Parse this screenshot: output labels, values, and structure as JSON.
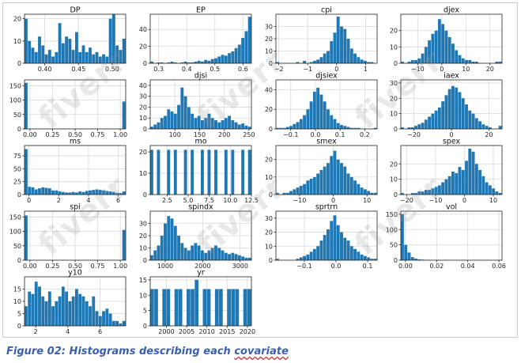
{
  "watermark": "fiverr",
  "caption": {
    "prefix": "Figure 02: Histograms describing each ",
    "underlined": "covariate"
  },
  "colors": {
    "bar": "#1f77b4",
    "grid": "#d9d9d9",
    "axis": "#222222",
    "caption": "#3b5fb0"
  },
  "chart_data": [
    {
      "type": "bar",
      "title": "DP",
      "xlim": [
        0.37,
        0.52
      ],
      "ylim": [
        0,
        22
      ],
      "xticks": [
        0.4,
        0.45,
        0.5
      ],
      "xtick_labels": [
        "0.40",
        "0.45",
        "0.50"
      ],
      "yticks": [
        0,
        10,
        20
      ],
      "ytick_labels": [
        "0",
        "10",
        "20"
      ],
      "counts": [
        20,
        10,
        7,
        5,
        12,
        8,
        4,
        6,
        3,
        5,
        18,
        9,
        12,
        11,
        6,
        14,
        5,
        8,
        5,
        7,
        4,
        5,
        3,
        4,
        3,
        20,
        22,
        8,
        6,
        11
      ]
    },
    {
      "type": "bar",
      "title": "EP",
      "xlim": [
        0.27,
        0.63
      ],
      "ylim": [
        0,
        58
      ],
      "xticks": [
        0.3,
        0.4,
        0.5,
        0.6
      ],
      "xtick_labels": [
        "0.3",
        "0.4",
        "0.5",
        "0.6"
      ],
      "yticks": [
        0,
        20,
        40
      ],
      "ytick_labels": [
        "0",
        "20",
        "40"
      ],
      "counts": [
        2,
        0,
        1,
        1,
        0,
        1,
        2,
        1,
        0,
        1,
        2,
        1,
        1,
        2,
        3,
        2,
        4,
        3,
        5,
        6,
        8,
        10,
        9,
        12,
        14,
        18,
        22,
        30,
        38,
        55
      ]
    },
    {
      "type": "bar",
      "title": "cpi",
      "xlim": [
        -2.1,
        1.4
      ],
      "ylim": [
        0,
        40
      ],
      "xticks": [
        -2,
        -1,
        0,
        1
      ],
      "xtick_labels": [
        "−2",
        "−1",
        "0",
        "1"
      ],
      "yticks": [
        0,
        10,
        20,
        30
      ],
      "ytick_labels": [
        "0",
        "10",
        "20",
        "30"
      ],
      "counts": [
        1,
        0,
        0,
        0,
        0,
        0,
        1,
        0,
        2,
        0,
        1,
        2,
        3,
        5,
        8,
        10,
        18,
        25,
        38,
        30,
        28,
        20,
        12,
        8,
        5,
        3,
        2,
        1,
        1,
        0
      ]
    },
    {
      "type": "bar",
      "title": "djex",
      "xlim": [
        -17,
        25
      ],
      "ylim": [
        0,
        30
      ],
      "xticks": [
        -10,
        0,
        10,
        20
      ],
      "xtick_labels": [
        "−10",
        "0",
        "10",
        "20"
      ],
      "yticks": [
        0,
        10,
        20
      ],
      "ytick_labels": [
        "0",
        "10",
        "20"
      ],
      "counts": [
        1,
        0,
        1,
        2,
        2,
        3,
        6,
        10,
        14,
        18,
        20,
        27,
        24,
        20,
        16,
        12,
        8,
        5,
        3,
        2,
        2,
        1,
        1,
        0,
        0,
        0,
        0,
        0,
        1,
        1
      ]
    },
    {
      "type": "bar",
      "title": "",
      "xlim": [
        -0.06,
        1.06
      ],
      "ylim": [
        0,
        170
      ],
      "xticks": [
        0,
        0.25,
        0.5,
        0.75,
        1
      ],
      "xtick_labels": [
        "0.00",
        "0.25",
        "0.50",
        "0.75",
        "1.00"
      ],
      "yticks": [
        0,
        50,
        100,
        150
      ],
      "ytick_labels": [
        "0",
        "50",
        "100",
        "150"
      ],
      "counts": [
        160,
        0,
        0,
        0,
        0,
        0,
        0,
        0,
        0,
        0,
        0,
        0,
        0,
        0,
        0,
        0,
        0,
        0,
        0,
        0,
        0,
        0,
        0,
        0,
        0,
        0,
        0,
        0,
        0,
        95
      ]
    },
    {
      "type": "bar",
      "title": "djsi",
      "xlim": [
        50,
        255
      ],
      "ylim": [
        0,
        45
      ],
      "xticks": [
        100,
        150,
        200,
        250
      ],
      "xtick_labels": [
        "100",
        "150",
        "200",
        "250"
      ],
      "yticks": [
        0,
        10,
        20,
        30,
        40
      ],
      "ytick_labels": [
        "0",
        "10",
        "20",
        "30",
        "40"
      ],
      "counts": [
        2,
        4,
        6,
        10,
        12,
        18,
        16,
        14,
        22,
        38,
        30,
        20,
        14,
        10,
        12,
        8,
        10,
        14,
        10,
        8,
        6,
        8,
        10,
        12,
        8,
        6,
        4,
        5,
        3,
        2
      ]
    },
    {
      "type": "bar",
      "title": "djsiex",
      "xlim": [
        -0.16,
        0.25
      ],
      "ylim": [
        0,
        50
      ],
      "xticks": [
        -0.1,
        0,
        0.1,
        0.2
      ],
      "xtick_labels": [
        "−0.1",
        "0.0",
        "0.1",
        "0.2"
      ],
      "yticks": [
        0,
        20,
        40
      ],
      "ytick_labels": [
        "0",
        "20",
        "40"
      ],
      "counts": [
        1,
        1,
        1,
        2,
        3,
        5,
        7,
        10,
        14,
        20,
        28,
        38,
        42,
        35,
        28,
        20,
        14,
        10,
        6,
        4,
        3,
        2,
        1,
        1,
        1,
        0,
        0,
        0,
        0,
        1
      ]
    },
    {
      "type": "bar",
      "title": "iaex",
      "xlim": [
        -27,
        27
      ],
      "ylim": [
        0,
        32
      ],
      "xticks": [
        -20,
        0,
        20
      ],
      "xtick_labels": [
        "−20",
        "0",
        "20"
      ],
      "yticks": [
        0,
        10,
        20,
        30
      ],
      "ytick_labels": [
        "0",
        "10",
        "20",
        "30"
      ],
      "counts": [
        1,
        0,
        1,
        1,
        2,
        3,
        4,
        6,
        8,
        10,
        12,
        14,
        18,
        22,
        26,
        28,
        27,
        24,
        20,
        16,
        12,
        10,
        7,
        5,
        3,
        2,
        1,
        0,
        0,
        2
      ]
    },
    {
      "type": "bar",
      "title": "ms",
      "xlim": [
        -0.3,
        6.5
      ],
      "ylim": [
        0,
        95
      ],
      "xticks": [
        0,
        2,
        4,
        6
      ],
      "xtick_labels": [
        "0",
        "2",
        "4",
        "6"
      ],
      "yticks": [
        0,
        25,
        50,
        75
      ],
      "ytick_labels": [
        "0",
        "25",
        "50",
        "75"
      ],
      "counts": [
        88,
        15,
        14,
        10,
        12,
        14,
        13,
        12,
        8,
        8,
        6,
        5,
        4,
        4,
        5,
        4,
        6,
        5,
        7,
        8,
        9,
        10,
        9,
        8,
        7,
        6,
        5,
        3,
        3,
        6
      ]
    },
    {
      "type": "bar",
      "title": "mo",
      "xlim": [
        0.5,
        12.5
      ],
      "ylim": [
        0,
        23
      ],
      "xticks": [
        2.5,
        5,
        7.5,
        10,
        12.5
      ],
      "xtick_labels": [
        "2.5",
        "5.0",
        "7.5",
        "10.0",
        "12.5"
      ],
      "yticks": [
        0,
        10,
        20
      ],
      "ytick_labels": [
        "0",
        "10",
        "20"
      ],
      "counts": [
        21,
        0,
        21,
        0,
        0,
        21,
        0,
        21,
        0,
        0,
        21,
        0,
        21,
        0,
        0,
        21,
        0,
        21,
        0,
        21,
        0,
        0,
        21,
        0,
        21,
        0,
        0,
        21,
        0,
        21
      ]
    },
    {
      "type": "bar",
      "title": "smex",
      "xlim": [
        -17,
        13
      ],
      "ylim": [
        0,
        28
      ],
      "xticks": [
        -10,
        0,
        10
      ],
      "xtick_labels": [
        "−10",
        "0",
        "10"
      ],
      "yticks": [
        0,
        10,
        20
      ],
      "ytick_labels": [
        "0",
        "10",
        "20"
      ],
      "counts": [
        1,
        0,
        1,
        1,
        2,
        3,
        4,
        5,
        6,
        8,
        9,
        10,
        12,
        14,
        16,
        18,
        22,
        25,
        20,
        18,
        16,
        12,
        10,
        8,
        6,
        4,
        3,
        2,
        1,
        1
      ]
    },
    {
      "type": "bar",
      "title": "spex",
      "xlim": [
        -22,
        13
      ],
      "ylim": [
        0,
        32
      ],
      "xticks": [
        -20,
        -10,
        0,
        10
      ],
      "xtick_labels": [
        "−20",
        "−10",
        "0",
        "10"
      ],
      "yticks": [
        0,
        10,
        20
      ],
      "ytick_labels": [
        "0",
        "10",
        "20"
      ],
      "counts": [
        1,
        0,
        0,
        1,
        1,
        2,
        2,
        3,
        3,
        4,
        5,
        6,
        8,
        10,
        12,
        15,
        14,
        18,
        16,
        22,
        30,
        28,
        20,
        16,
        12,
        8,
        6,
        4,
        2,
        1
      ]
    },
    {
      "type": "bar",
      "title": "spi",
      "xlim": [
        -0.06,
        1.06
      ],
      "ylim": [
        0,
        170
      ],
      "xticks": [
        0,
        0.25,
        0.5,
        0.75,
        1
      ],
      "xtick_labels": [
        "0.00",
        "0.25",
        "0.50",
        "0.75",
        "1.00"
      ],
      "yticks": [
        0,
        50,
        100,
        150
      ],
      "ytick_labels": [
        "0",
        "50",
        "100",
        "150"
      ],
      "counts": [
        155,
        0,
        0,
        0,
        0,
        0,
        0,
        0,
        0,
        0,
        0,
        0,
        0,
        0,
        0,
        0,
        0,
        0,
        0,
        0,
        0,
        0,
        0,
        0,
        0,
        0,
        0,
        0,
        0,
        105
      ]
    },
    {
      "type": "bar",
      "title": "spindx",
      "xlim": [
        600,
        3300
      ],
      "ylim": [
        0,
        40
      ],
      "xticks": [
        1000,
        2000,
        3000
      ],
      "xtick_labels": [
        "1000",
        "2000",
        "3000"
      ],
      "yticks": [
        0,
        10,
        20,
        30
      ],
      "ytick_labels": [
        "0",
        "10",
        "20",
        "30"
      ],
      "counts": [
        4,
        8,
        12,
        20,
        30,
        36,
        34,
        28,
        20,
        14,
        10,
        8,
        12,
        14,
        12,
        8,
        6,
        8,
        10,
        12,
        10,
        8,
        6,
        5,
        6,
        5,
        4,
        3,
        2,
        2
      ]
    },
    {
      "type": "bar",
      "title": "sprtrn",
      "xlim": [
        -0.19,
        0.13
      ],
      "ylim": [
        0,
        35
      ],
      "xticks": [
        -0.1,
        0,
        0.1
      ],
      "xtick_labels": [
        "−0.1",
        "0.0",
        "0.1"
      ],
      "yticks": [
        0,
        10,
        20,
        30
      ],
      "ytick_labels": [
        "0",
        "10",
        "20",
        "30"
      ],
      "counts": [
        1,
        0,
        0,
        0,
        0,
        0,
        1,
        2,
        3,
        4,
        6,
        8,
        10,
        14,
        18,
        22,
        28,
        32,
        25,
        20,
        16,
        14,
        10,
        8,
        6,
        4,
        3,
        2,
        1,
        1
      ]
    },
    {
      "type": "bar",
      "title": "vol",
      "xlim": [
        -0.003,
        0.062
      ],
      "ylim": [
        0,
        160
      ],
      "xticks": [
        0,
        0.02,
        0.04,
        0.06
      ],
      "xtick_labels": [
        "0.00",
        "0.02",
        "0.04",
        "0.06"
      ],
      "yticks": [
        0,
        50,
        100,
        150
      ],
      "ytick_labels": [
        "0",
        "50",
        "100",
        "150"
      ],
      "counts": [
        150,
        50,
        25,
        10,
        5,
        3,
        2,
        1,
        1,
        0,
        1,
        0,
        0,
        1,
        0,
        1,
        0,
        0,
        1,
        0,
        0,
        0,
        1,
        0,
        0,
        0,
        0,
        0,
        0,
        1
      ]
    },
    {
      "type": "bar",
      "title": "y10",
      "xlim": [
        1.3,
        7.6
      ],
      "ylim": [
        0,
        20
      ],
      "xticks": [
        2,
        4,
        6
      ],
      "xtick_labels": [
        "2",
        "4",
        "6"
      ],
      "yticks": [
        0,
        5,
        10,
        15
      ],
      "ytick_labels": [
        "0",
        "5",
        "10",
        "15"
      ],
      "counts": [
        8,
        14,
        13,
        18,
        16,
        12,
        10,
        14,
        8,
        10,
        12,
        16,
        14,
        10,
        12,
        15,
        13,
        12,
        10,
        8,
        12,
        6,
        4,
        6,
        7,
        5,
        2,
        2,
        1,
        2
      ]
    },
    {
      "type": "bar",
      "title": "yr",
      "xlim": [
        1996,
        2021
      ],
      "ylim": [
        0,
        16
      ],
      "xticks": [
        2000,
        2005,
        2010,
        2015,
        2020
      ],
      "xtick_labels": [
        "2000",
        "2005",
        "2010",
        "2015",
        "2020"
      ],
      "yticks": [
        0,
        5,
        10,
        15
      ],
      "ytick_labels": [
        "0",
        "5",
        "10",
        "15"
      ],
      "counts": [
        12,
        12,
        0,
        12,
        12,
        0,
        12,
        12,
        0,
        12,
        12,
        15,
        0,
        12,
        12,
        0,
        12,
        12,
        0,
        12,
        12,
        12,
        0,
        12,
        12
      ]
    }
  ]
}
